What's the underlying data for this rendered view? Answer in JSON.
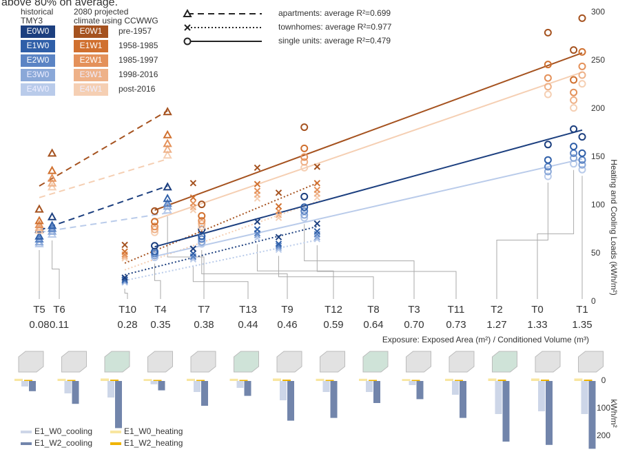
{
  "chart_data": [
    {
      "type": "scatter",
      "caption": "above 80% on average.",
      "xlabel": "Exposure: Exposed Area (m²) / Conditioned Volume (m³)",
      "ylabel": "Heating and Cooling Loads (kWh/m²)",
      "categories": [
        "T5",
        "T6",
        "T10",
        "T4",
        "T7",
        "T13",
        "T9",
        "T12",
        "T8",
        "T3",
        "T11",
        "T2",
        "T0",
        "T1"
      ],
      "x": [
        0.08,
        0.11,
        0.28,
        0.35,
        0.38,
        0.44,
        0.46,
        0.59,
        0.64,
        {
          "value": 0.7,
          "label": "0.70"
        },
        0.73,
        1.27,
        1.33,
        1.35
      ],
      "markers": [
        "triangle",
        "triangle",
        "x",
        "circle",
        "triangle",
        "x",
        "circle",
        "x",
        "x",
        "circle",
        "x",
        "circle",
        "circle",
        "circle"
      ],
      "xlim": [
        0.08,
        1.35
      ],
      "ylim": [
        0,
        300
      ],
      "yticks": [
        0,
        50,
        100,
        150,
        200,
        250,
        300
      ],
      "legend_headers": {
        "historical": [
          "historical",
          "TMY3"
        ],
        "projected": [
          "2080 projected",
          "climate using CCWWG"
        ]
      },
      "periods": [
        "pre-1957",
        "1958-1985",
        "1985-1997",
        "1998-2016",
        "post-2016"
      ],
      "series": [
        {
          "name": "E0W0",
          "color": "#1c3f7f",
          "values": [
            75,
            88,
            25,
            58,
            119,
            55,
            75,
            83,
            67,
            109,
            81,
            163,
            179,
            171
          ]
        },
        {
          "name": "E1W0",
          "color": "#2f5fa8",
          "values": [
            68,
            79,
            23,
            52,
            107,
            50,
            68,
            75,
            60,
            98,
            73,
            147,
            161,
            154
          ]
        },
        {
          "name": "E2W0",
          "color": "#5b84c4",
          "values": [
            65,
            76,
            22,
            50,
            102,
            47,
            65,
            71,
            58,
            94,
            70,
            140,
            154,
            147
          ]
        },
        {
          "name": "E3W0",
          "color": "#8aa8d8",
          "values": [
            62,
            73,
            21,
            48,
            99,
            46,
            62,
            69,
            56,
            90,
            67,
            135,
            149,
            142
          ]
        },
        {
          "name": "E4W0",
          "color": "#b9cbea",
          "values": [
            60,
            70,
            20,
            46,
            95,
            44,
            60,
            66,
            54,
            87,
            65,
            130,
            143,
            137
          ]
        },
        {
          "name": "E0W1",
          "color": "#a5521f",
          "values": [
            96,
            154,
            59,
            94,
            197,
            123,
            101,
            139,
            113,
            181,
            140,
            279,
            261,
            294
          ]
        },
        {
          "name": "E1W1",
          "color": "#d0702f",
          "values": [
            84,
            136,
            52,
            83,
            173,
            108,
            89,
            122,
            99,
            159,
            123,
            246,
            230,
            259
          ]
        },
        {
          "name": "E2W1",
          "color": "#e4915a",
          "values": [
            80,
            128,
            49,
            78,
            164,
            102,
            84,
            115,
            94,
            150,
            116,
            232,
            217,
            244
          ]
        },
        {
          "name": "E3W1",
          "color": "#eeb188",
          "values": [
            77,
            123,
            47,
            75,
            158,
            98,
            81,
            111,
            90,
            145,
            112,
            223,
            209,
            235
          ]
        },
        {
          "name": "E4W1",
          "color": "#f5cfb3",
          "values": [
            74,
            119,
            45,
            72,
            152,
            95,
            78,
            107,
            87,
            139,
            108,
            215,
            201,
            226
          ]
        }
      ],
      "trends": [
        {
          "name": "apartments: average R²=0.699",
          "style": "dashed",
          "marker": "triangle",
          "lines": [
            {
              "series": 4,
              "x": [
                0.08,
                0.38
              ],
              "values": [
                72,
                92
              ]
            },
            {
              "series": 9,
              "x": [
                0.08,
                0.38
              ],
              "values": [
                108,
                148
              ]
            },
            {
              "series": 0,
              "x": [
                0.08,
                0.38
              ],
              "values": [
                74,
                120
              ]
            },
            {
              "series": 5,
              "x": [
                0.08,
                0.38
              ],
              "values": [
                120,
                198
              ]
            }
          ]
        },
        {
          "name": "townhomes: average R²=0.977",
          "style": "dotted",
          "marker": "x",
          "lines": [
            {
              "series": 4,
              "x": [
                0.28,
                0.73
              ],
              "values": [
                22,
                64
              ]
            },
            {
              "series": 9,
              "x": [
                0.28,
                0.73
              ],
              "values": [
                33,
                104
              ]
            },
            {
              "series": 0,
              "x": [
                0.28,
                0.73
              ],
              "values": [
                28,
                78
              ]
            },
            {
              "series": 5,
              "x": [
                0.28,
                0.73
              ],
              "values": [
                40,
                123
              ]
            }
          ]
        },
        {
          "name": "single units: average R²=0.479",
          "style": "solid",
          "marker": "circle",
          "lines": [
            {
              "series": 4,
              "x": [
                0.35,
                1.35
              ],
              "values": [
                47,
                148
              ]
            },
            {
              "series": 9,
              "x": [
                0.35,
                1.35
              ],
              "values": [
                85,
                238
              ]
            },
            {
              "series": 0,
              "x": [
                0.35,
                1.35
              ],
              "values": [
                57,
                178
              ]
            },
            {
              "series": 5,
              "x": [
                0.35,
                1.35
              ],
              "values": [
                95,
                258
              ]
            }
          ]
        }
      ]
    },
    {
      "type": "bar",
      "ylabel": "kWh/m²",
      "ylim": [
        0,
        250
      ],
      "yticks": [
        0,
        100,
        200
      ],
      "series": [
        {
          "name": "E1_W0_cooling",
          "color": "#cdd6e8",
          "values": [
            20,
            45,
            60,
            12,
            40,
            25,
            70,
            40,
            40,
            15,
            50,
            120,
            110,
            120
          ]
        },
        {
          "name": "E1_W2_cooling",
          "color": "#7285ab",
          "values": [
            37,
            83,
            171,
            34,
            90,
            54,
            144,
            134,
            80,
            66,
            134,
            220,
            232,
            246
          ]
        },
        {
          "name": "E1_W0_heating",
          "color": "#f8e6a0",
          "values": [
            8,
            8,
            9,
            7,
            8,
            8,
            9,
            8,
            8,
            7,
            8,
            9,
            9,
            9
          ]
        },
        {
          "name": "E1_W2_heating",
          "color": "#f0b400",
          "values": [
            4,
            4,
            5,
            4,
            4,
            4,
            5,
            4,
            4,
            4,
            4,
            5,
            5,
            5
          ]
        }
      ]
    }
  ]
}
